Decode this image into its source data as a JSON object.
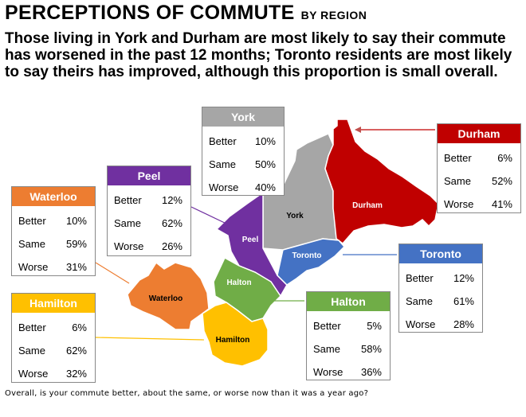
{
  "title": "PERCEPTIONS OF COMMUTE",
  "title_suffix": "BY REGION",
  "headline": "Those living in York and Durham are most likely to say their commute has worsened in the past 12 months; Toronto residents are most likely to say theirs has improved, although this proportion is small overall.",
  "footnote": "Overall, is your commute better, about the same, or worse now than it was a year ago?",
  "chart_data": {
    "type": "table",
    "columns": [
      "Better",
      "Same",
      "Worse"
    ],
    "regions": [
      {
        "name": "York",
        "color": "#a6a6a6",
        "values": [
          "10%",
          "50%",
          "40%"
        ]
      },
      {
        "name": "Durham",
        "color": "#c00000",
        "values": [
          "6%",
          "52%",
          "41%"
        ]
      },
      {
        "name": "Peel",
        "color": "#7030a0",
        "values": [
          "12%",
          "62%",
          "26%"
        ]
      },
      {
        "name": "Waterloo",
        "color": "#ed7d31",
        "values": [
          "10%",
          "59%",
          "31%"
        ]
      },
      {
        "name": "Toronto",
        "color": "#4472c4",
        "values": [
          "12%",
          "61%",
          "28%"
        ]
      },
      {
        "name": "Halton",
        "color": "#70ad47",
        "values": [
          "5%",
          "58%",
          "36%"
        ]
      },
      {
        "name": "Hamilton",
        "color": "#ffc000",
        "values": [
          "6%",
          "62%",
          "32%"
        ]
      }
    ]
  }
}
